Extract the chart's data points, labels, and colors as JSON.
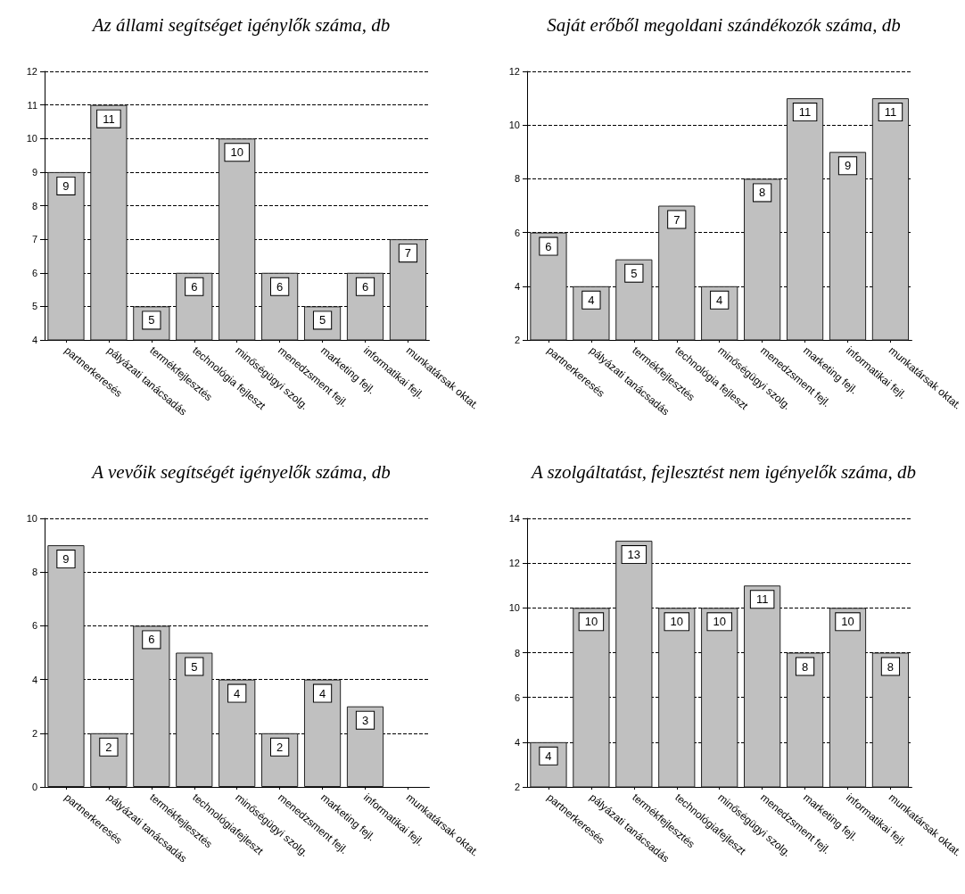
{
  "chart_data": [
    {
      "type": "bar",
      "title": "Az állami segítséget igénylők száma, db",
      "categories": [
        "partnerkeresés",
        "pályázati tanácsadás",
        "termékfejlesztés",
        "technológia fejleszt",
        "minőségügyi szolg.",
        "menedzsment fejl.",
        "marketing fejl.",
        "informatikai fejl.",
        "munkatársak oktat."
      ],
      "values": [
        9,
        11,
        5,
        6,
        10,
        6,
        5,
        6,
        7
      ],
      "color": "#c0c0c0",
      "ylim": [
        4,
        12
      ],
      "yticks": [
        4,
        5,
        6,
        7,
        8,
        9,
        10,
        11,
        12
      ],
      "grid": "y",
      "data_labels": true
    },
    {
      "type": "bar",
      "title": "Saját erőből megoldani szándékozók száma, db",
      "categories": [
        "partnerkeresés",
        "pályázati tanácsadás",
        "termékfejlesztés",
        "technológia fejleszt",
        "minőségügyi szolg.",
        "menedzsment fejl.",
        "marketing fejl.",
        "informatikai fejl.",
        "munkatársak oktat."
      ],
      "values": [
        6,
        4,
        5,
        7,
        4,
        8,
        11,
        9,
        11
      ],
      "color": "#c0c0c0",
      "ylim": [
        2,
        12
      ],
      "yticks": [
        2,
        4,
        6,
        8,
        10,
        12
      ],
      "grid": "y",
      "data_labels": true
    },
    {
      "type": "bar",
      "title": "A vevőik segítségét igényelők száma, db",
      "categories": [
        "partnerkeresés",
        "pályázati tanácsadás",
        "termékfejlesztés",
        "technológiafejleszt",
        "minőségügyi szolg.",
        "menedzsment fejl.",
        "marketing fejl.",
        "informatikai fejl.",
        "munkatársak oktat."
      ],
      "values": [
        9,
        2,
        6,
        5,
        4,
        2,
        4,
        3,
        0
      ],
      "value_labels": [
        "9",
        "2",
        "6",
        "5",
        "4",
        "2",
        "4",
        "3",
        null
      ],
      "color": "#c0c0c0",
      "ylim": [
        0,
        10
      ],
      "yticks": [
        0,
        2,
        4,
        6,
        8,
        10
      ],
      "grid": "y"
    },
    {
      "type": "bar",
      "title": "A szolgáltatást, fejlesztést nem igényelők száma, db",
      "categories": [
        "partnerkeresés",
        "pályázati tanácsadás",
        "termékfejlesztés",
        "technológiafejleszt",
        "minőségügyi szolg.",
        "menedzsment fejl.",
        "marketing fejl.",
        "informatikai fejl.",
        "munkatársak oktat."
      ],
      "values": [
        4,
        10,
        13,
        10,
        10,
        11,
        8,
        10,
        8
      ],
      "color": "#c0c0c0",
      "ylim": [
        2,
        14
      ],
      "yticks": [
        2,
        4,
        6,
        8,
        10,
        12,
        14
      ],
      "grid": "y",
      "data_labels": true
    }
  ]
}
